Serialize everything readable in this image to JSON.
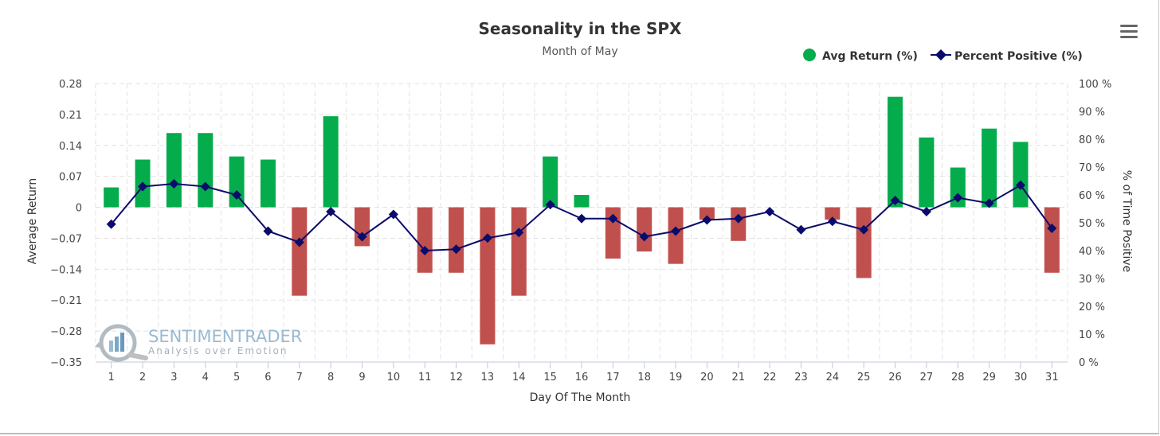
{
  "chart_data": {
    "type": "bar",
    "title": "Seasonality in the SPX",
    "subtitle": "Month of May",
    "xlabel": "Day Of The Month",
    "ylabel": "Average Return",
    "y2label": "% of Time Positive",
    "ylim": [
      -0.35,
      0.28
    ],
    "yticks": [
      0.28,
      0.21,
      0.14,
      0.07,
      0,
      -0.07,
      -0.14,
      -0.21,
      -0.28,
      -0.35
    ],
    "yticklabels": [
      "0.28",
      "0.21",
      "0.14",
      "0.07",
      "0",
      "−0.07",
      "−0.14",
      "−0.21",
      "−0.28",
      "−0.35"
    ],
    "y2lim": [
      0,
      100
    ],
    "y2ticks": [
      100,
      90,
      80,
      70,
      60,
      50,
      40,
      30,
      20,
      10,
      0
    ],
    "y2ticklabels": [
      "100 %",
      "90 %",
      "80 %",
      "70 %",
      "60 %",
      "50 %",
      "40 %",
      "30 %",
      "20 %",
      "10 %",
      "0 %"
    ],
    "categories": [
      "1",
      "2",
      "3",
      "4",
      "5",
      "6",
      "7",
      "8",
      "9",
      "10",
      "11",
      "12",
      "13",
      "14",
      "15",
      "16",
      "17",
      "18",
      "19",
      "20",
      "21",
      "22",
      "23",
      "24",
      "25",
      "26",
      "27",
      "28",
      "29",
      "30",
      "31"
    ],
    "series": [
      {
        "name": "Avg Return (%)",
        "kind": "bar",
        "axis": "left",
        "values": [
          0.045,
          0.108,
          0.168,
          0.168,
          0.115,
          0.108,
          -0.2,
          0.206,
          -0.088,
          0.0,
          -0.148,
          -0.148,
          -0.31,
          -0.2,
          0.115,
          0.028,
          -0.116,
          -0.1,
          -0.128,
          -0.028,
          -0.076,
          0.0,
          0.0,
          -0.028,
          -0.16,
          0.25,
          0.158,
          0.09,
          0.178,
          0.148,
          -0.148
        ]
      },
      {
        "name": "Percent Positive (%)",
        "kind": "line",
        "axis": "right",
        "values": [
          49.5,
          63,
          64,
          63,
          60,
          47,
          43,
          54,
          45,
          53,
          40,
          40.5,
          44.5,
          46.5,
          56.5,
          51.5,
          51.5,
          45,
          47,
          51,
          51.5,
          54,
          47.5,
          50.5,
          47.5,
          58,
          54,
          59,
          57,
          63.5,
          48
        ]
      }
    ],
    "colors": {
      "positive": "#04ac4b",
      "negative": "#c0504d",
      "line": "#0b0b6b"
    },
    "grid": true,
    "legend_position": "top-right"
  },
  "watermark": {
    "brand": "SENTIMENTRADER",
    "tagline": "Analysis over Emotion"
  },
  "menu_icon": "hamburger-menu-icon"
}
